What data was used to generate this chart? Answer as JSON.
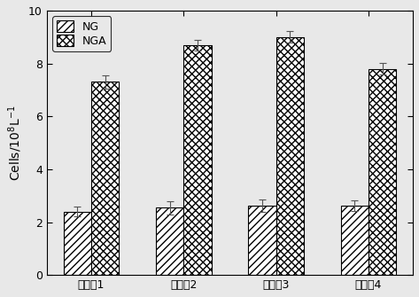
{
  "categories": [
    "实施例1",
    "实施例2",
    "实施例3",
    "实施例4"
  ],
  "ng_values": [
    2.4,
    2.55,
    2.62,
    2.62
  ],
  "nga_values": [
    7.3,
    8.7,
    9.0,
    7.8
  ],
  "ng_errors": [
    0.18,
    0.25,
    0.22,
    0.2
  ],
  "nga_errors": [
    0.25,
    0.2,
    0.22,
    0.22
  ],
  "ylabel": "Cells/10$^8$L$^{-1}$",
  "ylim": [
    0,
    10
  ],
  "yticks": [
    0,
    2,
    4,
    6,
    8,
    10
  ],
  "bar_width": 0.3,
  "ng_hatch": "////",
  "nga_hatch": "xxxx",
  "ng_label": "NG",
  "nga_label": "NGA",
  "bar_color": "white",
  "edge_color": "black",
  "bg_color": "#e8e8e8",
  "figsize": [
    4.73,
    3.35
  ],
  "dpi": 100
}
